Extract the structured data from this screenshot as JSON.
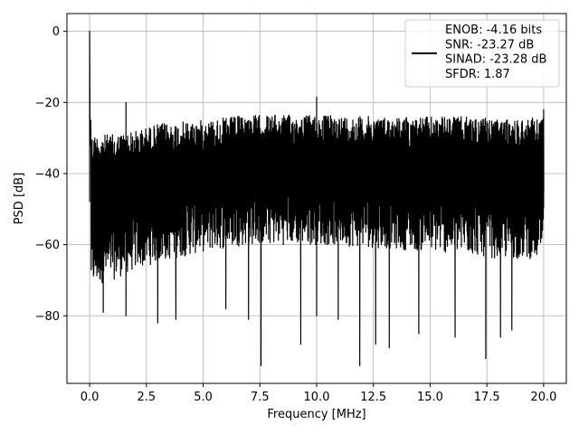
{
  "chart_data": {
    "type": "line",
    "title": "",
    "xlabel": "Frequency [MHz]",
    "ylabel": "PSD [dB]",
    "xlim": [
      -1.0,
      21.0
    ],
    "ylim": [
      -99,
      5
    ],
    "xticks": [
      0.0,
      2.5,
      5.0,
      7.5,
      10.0,
      12.5,
      15.0,
      17.5,
      20.0
    ],
    "xtick_labels": [
      "0.0",
      "2.5",
      "5.0",
      "7.5",
      "10.0",
      "12.5",
      "15.0",
      "17.5",
      "20.0"
    ],
    "yticks": [
      0,
      -20,
      -40,
      -60,
      -80
    ],
    "ytick_labels": [
      "0",
      "−20",
      "−40",
      "−60",
      "−80"
    ],
    "grid": true,
    "legend_position": "top-right",
    "legend_lines": [
      "ENOB: -4.16 bits",
      "SNR: -23.27 dB",
      "SINAD: -23.28 dB",
      "SFDR: 1.87"
    ],
    "series": [
      {
        "color": "#000000",
        "description": "noise-like power spectral density, upper envelope approx -29 to -23 dB, lower envelope approx -72 to -60 dB",
        "upper_envelope": [
          [
            0.1,
            -29
          ],
          [
            1.0,
            -29
          ],
          [
            2.0,
            -28
          ],
          [
            3.0,
            -26
          ],
          [
            5.0,
            -25
          ],
          [
            7.0,
            -23.5
          ],
          [
            10.0,
            -23.5
          ],
          [
            13.0,
            -24
          ],
          [
            15.0,
            -24
          ],
          [
            17.0,
            -24
          ],
          [
            18.0,
            -25
          ],
          [
            20.0,
            -24
          ]
        ],
        "lower_envelope": [
          [
            0.1,
            -72
          ],
          [
            1.0,
            -70
          ],
          [
            2.0,
            -67
          ],
          [
            3.0,
            -65
          ],
          [
            5.0,
            -62
          ],
          [
            7.0,
            -60
          ],
          [
            10.0,
            -60
          ],
          [
            13.0,
            -61
          ],
          [
            15.0,
            -62
          ],
          [
            17.0,
            -63
          ],
          [
            18.0,
            -64
          ],
          [
            20.0,
            -64
          ]
        ],
        "peaks": [
          [
            0.0,
            0
          ],
          [
            1.6,
            -20
          ],
          [
            10.0,
            -18.5
          ],
          [
            20.0,
            -22
          ]
        ],
        "dips": [
          [
            0.6,
            -79
          ],
          [
            1.6,
            -80
          ],
          [
            3.0,
            -82
          ],
          [
            3.8,
            -81
          ],
          [
            6.0,
            -78
          ],
          [
            7.0,
            -81
          ],
          [
            7.55,
            -94
          ],
          [
            9.3,
            -88
          ],
          [
            10.0,
            -80
          ],
          [
            10.95,
            -81
          ],
          [
            11.9,
            -94
          ],
          [
            12.6,
            -88
          ],
          [
            13.2,
            -89
          ],
          [
            14.5,
            -85
          ],
          [
            16.1,
            -86
          ],
          [
            17.45,
            -92
          ],
          [
            18.1,
            -86
          ],
          [
            18.6,
            -84
          ]
        ]
      }
    ]
  }
}
